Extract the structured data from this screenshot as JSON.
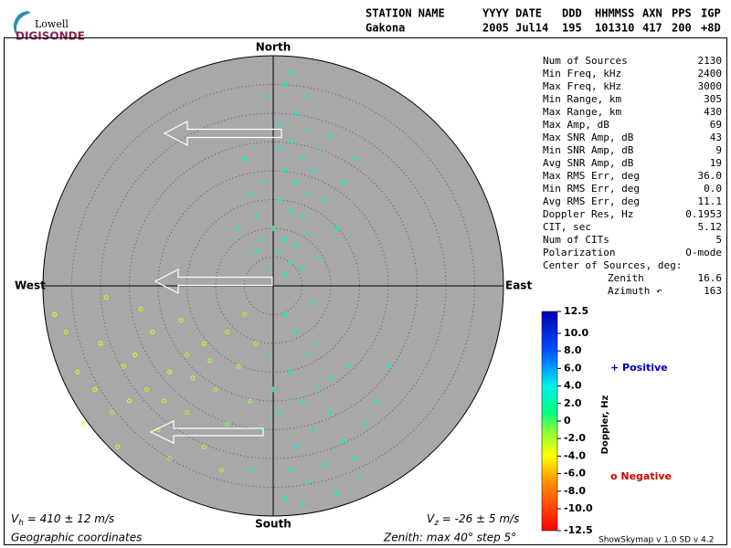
{
  "logo": {
    "line1": "Lowell",
    "line2": "DIGISONDE"
  },
  "header": {
    "columns": [
      "STATION NAME",
      "YYYY DATE",
      "DDD",
      "HHMMSS",
      "AXN",
      "PPS",
      "IGP"
    ],
    "values": [
      "Gakona",
      "2005 Jul14",
      "195",
      "101310",
      "417",
      "200",
      "+8D"
    ]
  },
  "stats": {
    "rows": [
      [
        "Num of Sources",
        "2130"
      ],
      [
        "Min Freq, kHz",
        "2400"
      ],
      [
        "Max Freq, kHz",
        "3000"
      ],
      [
        "Min Range, km",
        "305"
      ],
      [
        "Max Range, km",
        "430"
      ],
      [
        "Max Amp, dB",
        "69"
      ],
      [
        "Max SNR Amp, dB",
        "43"
      ],
      [
        "Min SNR Amp, dB",
        "9"
      ],
      [
        "Avg SNR Amp, dB",
        "19"
      ],
      [
        "Max RMS Err, deg",
        "36.0"
      ],
      [
        "Min RMS Err, deg",
        "0.0"
      ],
      [
        "Avg RMS Err, deg",
        "11.1"
      ],
      [
        "Doppler Res, Hz",
        "0.1953"
      ],
      [
        "CIT, sec",
        "5.12"
      ],
      [
        "Num of CITs",
        "5"
      ],
      [
        "Polarization",
        "O-mode"
      ]
    ],
    "center_title": "Center of Sources, deg:",
    "center_rows": [
      [
        "Zenith",
        "16.6"
      ],
      [
        "Azimuth ↶",
        "163"
      ]
    ]
  },
  "footer": {
    "vh": {
      "symbol": "V",
      "sub": "h",
      "text": " = 410 ± 12 m/s"
    },
    "vz": {
      "symbol": "V",
      "sub": "z",
      "text": " = -26 ± 5 m/s"
    },
    "coords": "Geographic coordinates",
    "zenith": "Zenith: max 40°  step 5°",
    "version": "ShowSkymap v 1.0  SD v 4.2"
  },
  "chart_data": [
    {
      "type": "skymap",
      "north": "North",
      "south": "South",
      "east": "East",
      "west": "West",
      "zenith_max": 40,
      "zenith_step": 5,
      "sources": [
        {
          "east": 2,
          "north": 35,
          "doppler": 2.5
        },
        {
          "east": 4,
          "north": 30,
          "doppler": 3
        },
        {
          "east": 6,
          "north": 33,
          "doppler": 2
        },
        {
          "east": 1,
          "north": 28,
          "doppler": 3.5
        },
        {
          "east": 3,
          "north": 25,
          "doppler": 2.5
        },
        {
          "east": 5,
          "north": 22,
          "doppler": 1.5
        },
        {
          "east": 2,
          "north": 20,
          "doppler": 3
        },
        {
          "east": 4,
          "north": 18,
          "doppler": 2
        },
        {
          "east": 6,
          "north": 16,
          "doppler": 2.5
        },
        {
          "east": 1,
          "north": 15,
          "doppler": 3.5
        },
        {
          "east": 3,
          "north": 13,
          "doppler": 2
        },
        {
          "east": 5,
          "north": 12,
          "doppler": 1.5
        },
        {
          "east": 0,
          "north": 10,
          "doppler": 2.5
        },
        {
          "east": 2,
          "north": 8,
          "doppler": 3
        },
        {
          "east": 4,
          "north": 7,
          "doppler": 2
        },
        {
          "east": 1,
          "north": 6,
          "doppler": 1.5
        },
        {
          "east": 3,
          "north": 4,
          "doppler": 2.5
        },
        {
          "east": -1,
          "north": 3,
          "doppler": 3
        },
        {
          "east": 5,
          "north": 3,
          "doppler": 2
        },
        {
          "east": 2,
          "north": 2,
          "doppler": 1.5
        },
        {
          "east": -2,
          "north": 8,
          "doppler": 2.5
        },
        {
          "east": -3,
          "north": 12,
          "doppler": 3
        },
        {
          "east": -4,
          "north": 16,
          "doppler": 2
        },
        {
          "east": -2,
          "north": 18,
          "doppler": 2.5
        },
        {
          "east": 7,
          "north": 20,
          "doppler": 3.5
        },
        {
          "east": 8,
          "north": 24,
          "doppler": 2
        },
        {
          "east": 10,
          "north": 26,
          "doppler": 3
        },
        {
          "east": 9,
          "north": 15,
          "doppler": 2.5
        },
        {
          "east": 11,
          "north": 10,
          "doppler": 2
        },
        {
          "east": -5,
          "north": 22,
          "doppler": 1.5
        },
        {
          "east": 3,
          "north": 37,
          "doppler": 3
        },
        {
          "east": -1,
          "north": 33,
          "doppler": 2.5
        },
        {
          "east": 6,
          "north": 27,
          "doppler": 2
        },
        {
          "east": 12,
          "north": 18,
          "doppler": 3.5
        },
        {
          "east": 14,
          "north": 22,
          "doppler": 2.5
        },
        {
          "east": -6,
          "north": 10,
          "doppler": 2
        },
        {
          "east": 8,
          "north": 5,
          "doppler": 3
        },
        {
          "east": -3,
          "north": 6,
          "doppler": 1.5
        },
        {
          "east": 6,
          "north": 9,
          "doppler": 2.5
        },
        {
          "east": 1,
          "north": 24,
          "doppler": 3
        },
        {
          "east": 2,
          "north": -5,
          "doppler": 2
        },
        {
          "east": 4,
          "north": -8,
          "doppler": 2.5
        },
        {
          "east": 6,
          "north": -12,
          "doppler": 3
        },
        {
          "east": 3,
          "north": -15,
          "doppler": 2
        },
        {
          "east": 8,
          "north": -18,
          "doppler": 3.5
        },
        {
          "east": 5,
          "north": -20,
          "doppler": 2.5
        },
        {
          "east": 10,
          "north": -22,
          "doppler": 3
        },
        {
          "east": 7,
          "north": -25,
          "doppler": 2
        },
        {
          "east": 12,
          "north": -27,
          "doppler": 2.5
        },
        {
          "east": 4,
          "north": -28,
          "doppler": 3
        },
        {
          "east": 9,
          "north": -31,
          "doppler": 2
        },
        {
          "east": 14,
          "north": -30,
          "doppler": 3.5
        },
        {
          "east": 6,
          "north": -34,
          "doppler": 2.5
        },
        {
          "east": 11,
          "north": -36,
          "doppler": 2
        },
        {
          "east": 2,
          "north": -37,
          "doppler": 3
        },
        {
          "east": 16,
          "north": -24,
          "doppler": 2.5
        },
        {
          "east": 13,
          "north": -14,
          "doppler": 2
        },
        {
          "east": 1,
          "north": -22,
          "doppler": 1.5
        },
        {
          "east": 8,
          "north": -10,
          "doppler": 3
        },
        {
          "east": 18,
          "north": -20,
          "doppler": 2.5
        },
        {
          "east": 3,
          "north": -32,
          "doppler": 2
        },
        {
          "east": 10,
          "north": -16,
          "doppler": 3
        },
        {
          "east": 15,
          "north": -33,
          "doppler": 2.5
        },
        {
          "east": 5,
          "north": -38,
          "doppler": 2
        },
        {
          "east": 0,
          "north": -18,
          "doppler": 1.5
        },
        {
          "east": -2,
          "north": -25,
          "doppler": 2
        },
        {
          "east": -4,
          "north": -32,
          "doppler": 1.5
        },
        {
          "east": -1,
          "north": -12,
          "doppler": 2.5
        },
        {
          "east": 7,
          "north": -3,
          "doppler": 2
        },
        {
          "east": 20,
          "north": -14,
          "doppler": 3
        },
        {
          "east": -5,
          "north": -5,
          "doppler": -2
        },
        {
          "east": -8,
          "north": -8,
          "doppler": -2.5
        },
        {
          "east": -12,
          "north": -10,
          "doppler": -3
        },
        {
          "east": -15,
          "north": -12,
          "doppler": -2
        },
        {
          "east": -18,
          "north": -15,
          "doppler": -3.5
        },
        {
          "east": -22,
          "north": -18,
          "doppler": -2.5
        },
        {
          "east": -25,
          "north": -20,
          "doppler": -3
        },
        {
          "east": -28,
          "north": -22,
          "doppler": -2
        },
        {
          "east": -31,
          "north": -18,
          "doppler": -3.5
        },
        {
          "east": -34,
          "north": -15,
          "doppler": -3
        },
        {
          "east": -20,
          "north": -25,
          "doppler": -2.5
        },
        {
          "east": -15,
          "north": -22,
          "doppler": -2
        },
        {
          "east": -10,
          "north": -18,
          "doppler": -1.5
        },
        {
          "east": -6,
          "north": -14,
          "doppler": -2
        },
        {
          "east": -24,
          "north": -12,
          "doppler": -3
        },
        {
          "east": -30,
          "north": -10,
          "doppler": -3.5
        },
        {
          "east": -36,
          "north": -8,
          "doppler": -3
        },
        {
          "east": -27,
          "north": -28,
          "doppler": -2.5
        },
        {
          "east": -18,
          "north": -30,
          "doppler": -2
        },
        {
          "east": -12,
          "north": -28,
          "doppler": -2.5
        },
        {
          "east": -8,
          "north": -24,
          "doppler": -1.5
        },
        {
          "east": -14,
          "north": -16,
          "doppler": -2.5
        },
        {
          "east": -21,
          "north": -8,
          "doppler": -3
        },
        {
          "east": -33,
          "north": -24,
          "doppler": -3
        },
        {
          "east": -4,
          "north": -20,
          "doppler": -1.5
        },
        {
          "east": -16,
          "north": -6,
          "doppler": -2.5
        },
        {
          "east": -26,
          "north": -14,
          "doppler": -3
        },
        {
          "east": -9,
          "north": -32,
          "doppler": -2
        },
        {
          "east": -19,
          "north": -20,
          "doppler": -2.5
        },
        {
          "east": -11,
          "north": -13,
          "doppler": -2
        },
        {
          "east": -3,
          "north": -10,
          "doppler": -1.5
        },
        {
          "east": -23,
          "north": -4,
          "doppler": -3
        },
        {
          "east": -38,
          "north": -5,
          "doppler": -3.5
        },
        {
          "east": -29,
          "north": -2,
          "doppler": -3
        }
      ]
    },
    {
      "type": "colorbar",
      "label": "Doppler, Hz",
      "lim": [
        -12.5,
        12.5
      ],
      "ticks": [
        12.5,
        {
          "value": 10,
          "label": "10.0"
        },
        {
          "value": 8,
          "label": "8.0"
        },
        {
          "value": 6,
          "label": "6.0"
        },
        {
          "value": 4,
          "label": "4.0"
        },
        {
          "value": 2,
          "label": "2.0"
        },
        0,
        {
          "value": -2,
          "label": "-2.0"
        },
        {
          "value": -4,
          "label": "-4.0"
        },
        {
          "value": -6,
          "label": "-6.0"
        },
        {
          "value": -8,
          "label": "-8.0"
        },
        {
          "value": -10,
          "label": "-10.0"
        },
        -12.5
      ],
      "positive": "+ Positive",
      "negative": "o Negative",
      "positive_color": "#0000c0",
      "negative_color": "#d00000"
    }
  ]
}
